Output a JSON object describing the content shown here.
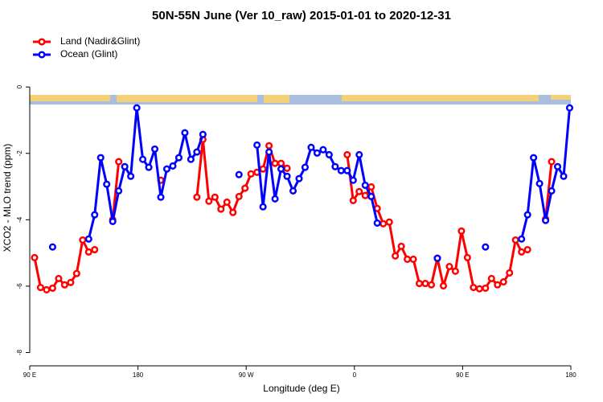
{
  "chart_data": {
    "type": "line",
    "title": "50N-55N June (Ver 10_raw)   2015-01-01 to 2020-12-31",
    "x_label": "Longitude (deg E)",
    "y_label": "XCO2 - MLO trend (ppm)",
    "legend": "topleft",
    "x": [
      94,
      99,
      104,
      109,
      114,
      119,
      124,
      129,
      134,
      139,
      144,
      149,
      154,
      159,
      164,
      169,
      174,
      179,
      184,
      189,
      194,
      199,
      204,
      209,
      214,
      219,
      224,
      229,
      234,
      239,
      244,
      249,
      254,
      259,
      264,
      269,
      274,
      279,
      284,
      289,
      294,
      299,
      304,
      309,
      314,
      319,
      324,
      329,
      334,
      339,
      344,
      349,
      354,
      359,
      364,
      369,
      374,
      379,
      384,
      389,
      394,
      399,
      404,
      409,
      414,
      419,
      424,
      429,
      434,
      439,
      444,
      449,
      454,
      459,
      464,
      469,
      474,
      479,
      484,
      489,
      494,
      499,
      504,
      509,
      514,
      519,
      524,
      529,
      534,
      539
    ],
    "series": [
      {
        "name": "Land (Nadir&Glint)",
        "color": "#ff0000",
        "values": [
          -5.14,
          -6.04,
          -6.11,
          -6.06,
          -5.77,
          -5.96,
          -5.89,
          -5.62,
          -4.61,
          -4.97,
          -4.9,
          null,
          null,
          -4.0,
          -2.25,
          null,
          null,
          null,
          null,
          null,
          null,
          -2.81,
          null,
          null,
          null,
          null,
          null,
          -3.32,
          -1.58,
          -3.44,
          -3.32,
          -3.68,
          -3.47,
          -3.78,
          -3.3,
          -3.05,
          -2.62,
          -2.57,
          -2.47,
          -1.77,
          -2.3,
          -2.3,
          -2.45,
          null,
          null,
          null,
          null,
          null,
          null,
          null,
          null,
          null,
          -2.04,
          -3.42,
          -3.15,
          -3.27,
          -3.01,
          -3.66,
          -4.12,
          -4.07,
          -5.09,
          -4.8,
          -5.19,
          -5.19,
          -5.92,
          -5.92,
          -5.96,
          -5.16,
          -5.99,
          -5.41,
          -5.55,
          -4.34,
          -5.14,
          -6.04,
          -6.08,
          -6.06,
          -5.77,
          -5.96,
          -5.87,
          -5.6,
          -4.61,
          -4.97,
          -4.9,
          null,
          null,
          -3.98,
          -2.25,
          null,
          null,
          null
        ]
      },
      {
        "name": "Ocean (Glint)",
        "color": "#0000ff",
        "values": [
          null,
          null,
          null,
          -4.82,
          null,
          null,
          null,
          null,
          null,
          -4.58,
          -3.85,
          -2.13,
          -2.93,
          -4.05,
          -3.13,
          -2.4,
          -2.69,
          -0.63,
          -2.18,
          -2.42,
          -1.87,
          -3.32,
          -2.47,
          -2.38,
          -2.13,
          -1.38,
          -2.18,
          -1.96,
          -1.43,
          null,
          null,
          null,
          null,
          null,
          -2.64,
          null,
          null,
          -1.75,
          -3.61,
          -1.96,
          -3.37,
          -2.47,
          -2.69,
          -3.13,
          -2.76,
          -2.42,
          -1.82,
          -1.99,
          -1.89,
          -2.04,
          -2.4,
          -2.52,
          -2.52,
          -2.81,
          -2.04,
          -2.96,
          -3.3,
          -4.1,
          null,
          null,
          null,
          null,
          null,
          null,
          null,
          null,
          null,
          -5.16,
          null,
          null,
          null,
          null,
          null,
          null,
          null,
          -4.82,
          null,
          null,
          null,
          null,
          null,
          -4.58,
          -3.85,
          -2.13,
          -2.91,
          -4.02,
          -3.13,
          -2.4,
          -2.69,
          -0.63
        ]
      }
    ],
    "xlim": [
      90,
      540
    ],
    "xticks": [
      {
        "value": 90,
        "label": "90 E"
      },
      180,
      {
        "value": 270,
        "label": "90 W"
      },
      {
        "value": 360,
        "label": "0"
      },
      {
        "value": 450,
        "label": "90 E"
      },
      {
        "value": 540,
        "label": "180"
      }
    ],
    "ylim": [
      -8.4,
      1.7
    ],
    "yticks": [
      0,
      -2,
      -4,
      -6,
      -8
    ]
  }
}
